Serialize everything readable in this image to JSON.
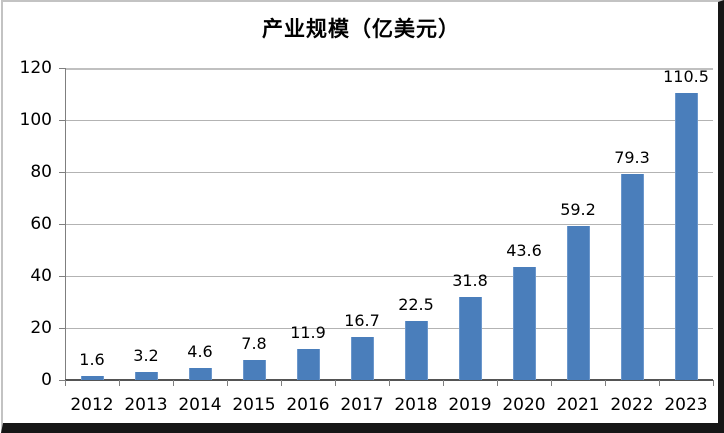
{
  "chart_data": {
    "type": "bar",
    "title": "产业规模（亿美元）",
    "categories": [
      "2012",
      "2013",
      "2014",
      "2015",
      "2016",
      "2017",
      "2018",
      "2019",
      "2020",
      "2021",
      "2022",
      "2023"
    ],
    "values": [
      1.6,
      3.2,
      4.6,
      7.8,
      11.9,
      16.7,
      22.5,
      31.8,
      43.6,
      59.2,
      79.3,
      110.5
    ],
    "data_labels": [
      "1.6",
      "3.2",
      "4.6",
      "7.8",
      "11.9",
      "16.7",
      "22.5",
      "31.8",
      "43.6",
      "59.2",
      "79.3",
      "110.5"
    ],
    "xlabel": "",
    "ylabel": "",
    "ylim": [
      0,
      120
    ],
    "yticks": [
      0,
      20,
      40,
      60,
      80,
      100,
      120
    ],
    "grid": "horizontal",
    "legend_position": "none",
    "colors": {
      "bar": "#4a7ebb",
      "bar_edge": "#6b97cc",
      "gridline": "#b3b3b3",
      "axis": "#7f7f7f",
      "text": "#000000",
      "frame_light": "#c3c3c3",
      "frame_dark": "#161616"
    }
  }
}
